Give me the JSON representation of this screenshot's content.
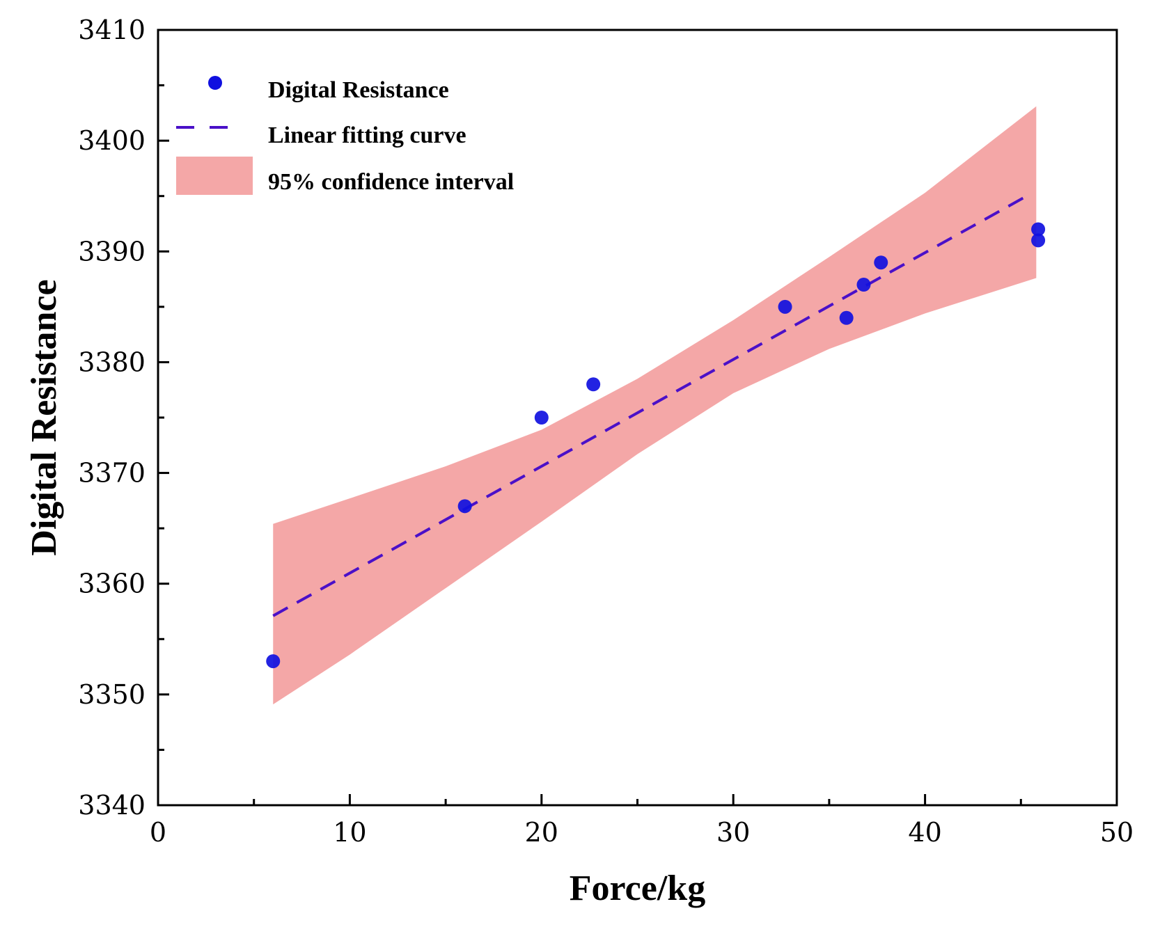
{
  "chart_data": {
    "type": "scatter",
    "title": "",
    "xlabel": "Force/kg",
    "ylabel": "Digital Resistance",
    "xlim": [
      0,
      50
    ],
    "ylim": [
      3340,
      3410
    ],
    "xticks": [
      0,
      10,
      20,
      30,
      40,
      50
    ],
    "yticks": [
      3340,
      3350,
      3360,
      3370,
      3380,
      3390,
      3400,
      3410
    ],
    "grid": false,
    "legend_position": "top-left",
    "colors": {
      "points": "#1010e0",
      "fit_line": "#4a10c8",
      "confidence_fill": "#f08a8a",
      "axes": "#000000"
    },
    "series": [
      {
        "name": "Digital Resistance",
        "kind": "scatter",
        "x": [
          6,
          16,
          20,
          22.7,
          32.7,
          35.9,
          36.8,
          37.7,
          45.9,
          45.9
        ],
        "y": [
          3353,
          3367,
          3375,
          3378,
          3385,
          3384,
          3387,
          3389,
          3391,
          3392
        ]
      },
      {
        "name": "Linear fitting curve",
        "kind": "line",
        "style": "dashed",
        "x": [
          6,
          45.3
        ],
        "y": [
          3357.1,
          3395
        ]
      },
      {
        "name": "95% confidence interval",
        "kind": "band",
        "x": [
          6,
          10,
          15,
          20,
          25,
          30,
          35,
          40,
          45.8
        ],
        "upper": [
          3365.4,
          3367.7,
          3370.6,
          3373.9,
          3378.5,
          3383.8,
          3389.5,
          3395.3,
          3403.1
        ],
        "lower": [
          3349.1,
          3353.6,
          3359.6,
          3365.6,
          3371.7,
          3377.2,
          3381.2,
          3384.4,
          3387.6
        ]
      }
    ],
    "legend": [
      {
        "label": "Digital Resistance",
        "symbol": "dot"
      },
      {
        "label": "Linear fitting curve",
        "symbol": "dash"
      },
      {
        "label": "95% confidence interval",
        "symbol": "band"
      }
    ]
  }
}
